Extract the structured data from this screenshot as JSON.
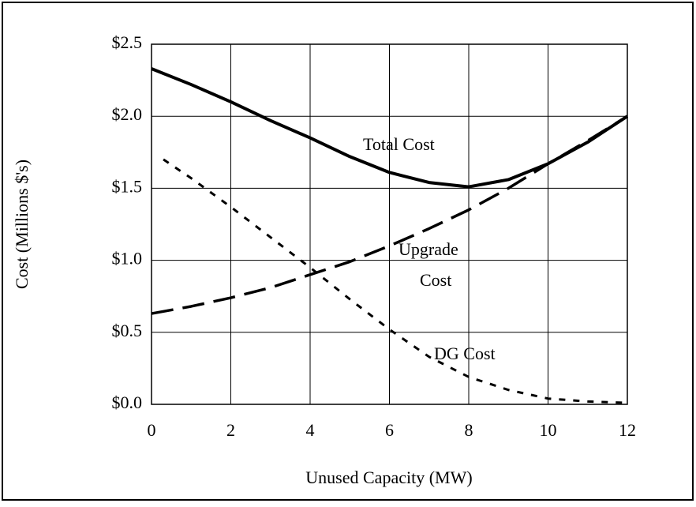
{
  "chart_data": {
    "type": "line",
    "xlabel": "Unused Capacity (MW)",
    "ylabel": "Cost (Millions $'s)",
    "xlim": [
      0,
      12
    ],
    "xticks": [
      0,
      2,
      4,
      6,
      8,
      10,
      12
    ],
    "ylim": [
      0,
      2.5
    ],
    "yticks": [
      {
        "value": 0,
        "label": "$0.0"
      },
      {
        "value": 0.5,
        "label": "$0.5"
      },
      {
        "value": 1.0,
        "label": "$1.0"
      },
      {
        "value": 1.5,
        "label": "$1.5"
      },
      {
        "value": 2.0,
        "label": "$2.0"
      },
      {
        "value": 2.5,
        "label": "$2.5"
      }
    ],
    "grid": true,
    "series": [
      {
        "name": "Total Cost",
        "color": "#000000",
        "dash": "solid",
        "x": [
          0,
          1,
          2,
          3,
          4,
          5,
          6,
          7,
          8,
          9,
          10,
          11,
          12
        ],
        "values": [
          2.33,
          2.22,
          2.1,
          1.97,
          1.85,
          1.72,
          1.61,
          1.54,
          1.51,
          1.56,
          1.67,
          1.82,
          2.0
        ]
      },
      {
        "name": "Upgrade Cost",
        "color": "#000000",
        "dash": "long",
        "x": [
          0,
          1,
          2,
          3,
          4,
          5,
          6,
          7,
          8,
          9,
          10,
          11,
          12
        ],
        "values": [
          0.63,
          0.68,
          0.74,
          0.81,
          0.9,
          0.99,
          1.1,
          1.22,
          1.35,
          1.5,
          1.67,
          1.83,
          2.0
        ]
      },
      {
        "name": "DG Cost",
        "color": "#000000",
        "dash": "short",
        "x": [
          0.3,
          1,
          2,
          3,
          4,
          5,
          6,
          7,
          8,
          9,
          10,
          11,
          12
        ],
        "values": [
          1.7,
          1.57,
          1.37,
          1.16,
          0.95,
          0.73,
          0.52,
          0.33,
          0.19,
          0.1,
          0.04,
          0.02,
          0.01
        ]
      }
    ],
    "annotations": [
      "Total Cost",
      "Upgrade",
      "Cost",
      "DG Cost"
    ]
  }
}
